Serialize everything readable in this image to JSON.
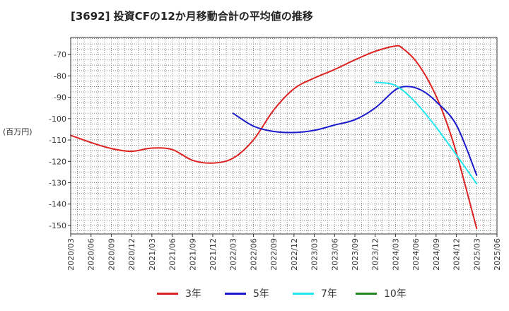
{
  "page_title": "[3692]  投資CFの12か月移動合計の平均値の推移",
  "y_unit": "(百万円)",
  "chart_data": {
    "type": "line",
    "title": "[3692]  投資CFの12か月移動合計の平均値の推移",
    "ylabel": "(百万円)",
    "ylim": [
      -154,
      -62
    ],
    "yticks": [
      -70,
      -80,
      -90,
      -100,
      -110,
      -120,
      -130,
      -140,
      -150
    ],
    "x_labels": [
      "2020/03",
      "2020/06",
      "2020/09",
      "2020/12",
      "2021/03",
      "2021/06",
      "2021/09",
      "2021/12",
      "2022/03",
      "2022/06",
      "2022/09",
      "2022/12",
      "2023/03",
      "2023/06",
      "2023/09",
      "2023/12",
      "2024/03",
      "2024/06",
      "2024/09",
      "2024/12",
      "2025/03",
      "2025/06"
    ],
    "grid": true,
    "legend_position": "bottom",
    "series": [
      {
        "name": "3年",
        "color": "#dd2222",
        "points": [
          [
            "2020/03",
            -107.8
          ],
          [
            "2020/06",
            -111.2
          ],
          [
            "2020/09",
            -114
          ],
          [
            "2020/12",
            -115.3
          ],
          [
            "2021/03",
            -113.8
          ],
          [
            "2021/06",
            -114.5
          ],
          [
            "2021/09",
            -119.5
          ],
          [
            "2021/12",
            -120.8
          ],
          [
            "2022/03",
            -118.5
          ],
          [
            "2022/06",
            -110
          ],
          [
            "2022/09",
            -96
          ],
          [
            "2022/12",
            -86
          ],
          [
            "2023/03",
            -81
          ],
          [
            "2023/06",
            -77
          ],
          [
            "2023/09",
            -72.5
          ],
          [
            "2023/12",
            -68.5
          ],
          [
            "2024/03",
            -66
          ],
          [
            "2024/04",
            -67
          ],
          [
            "2024/06",
            -73
          ],
          [
            "2024/08",
            -83
          ],
          [
            "2024/10",
            -97
          ],
          [
            "2024/12",
            -116
          ],
          [
            "2025/03",
            -151.5
          ]
        ]
      },
      {
        "name": "5年",
        "color": "#1a1acc",
        "points": [
          [
            "2022/03",
            -97.5
          ],
          [
            "2022/06",
            -103.5
          ],
          [
            "2022/09",
            -106
          ],
          [
            "2022/12",
            -106.5
          ],
          [
            "2023/03",
            -105.5
          ],
          [
            "2023/06",
            -103
          ],
          [
            "2023/09",
            -100.5
          ],
          [
            "2023/12",
            -95
          ],
          [
            "2024/03",
            -86.5
          ],
          [
            "2024/05",
            -85
          ],
          [
            "2024/07",
            -87
          ],
          [
            "2024/09",
            -92
          ],
          [
            "2024/12",
            -103
          ],
          [
            "2025/03",
            -126.5
          ]
        ]
      },
      {
        "name": "7年",
        "color": "#22e6ee",
        "points": [
          [
            "2023/12",
            -83
          ],
          [
            "2024/03",
            -84.5
          ],
          [
            "2024/06",
            -92.5
          ],
          [
            "2024/09",
            -104
          ],
          [
            "2024/12",
            -117
          ],
          [
            "2025/03",
            -130.5
          ]
        ]
      },
      {
        "name": "10年",
        "color": "#228822",
        "points": []
      }
    ]
  }
}
